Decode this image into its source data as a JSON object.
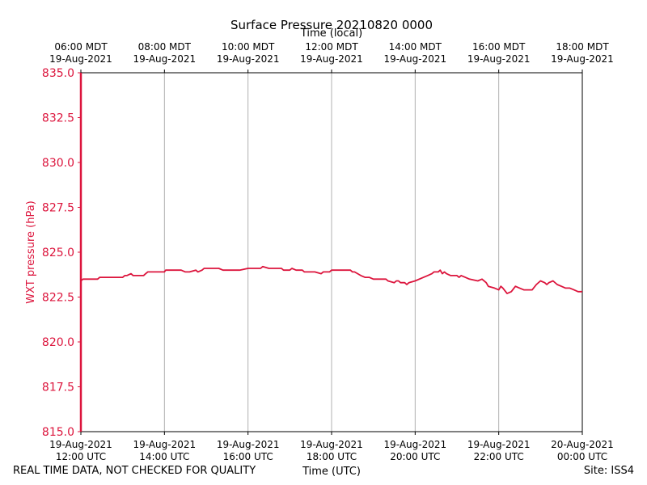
{
  "chart_data": {
    "type": "line",
    "title": "Surface Pressure 20210820 0000",
    "ylabel": "WXT pressure (hPa)",
    "xlabel_bottom": "Time (UTC)",
    "xlabel_top": "Time (local)",
    "ylim": [
      815.0,
      835.0
    ],
    "yticks": [
      "815.0",
      "817.5",
      "820.0",
      "822.5",
      "825.0",
      "827.5",
      "830.0",
      "832.5",
      "835.0"
    ],
    "xlim_hours": [
      0,
      12
    ],
    "grid": "vertical",
    "bottom_ticks": [
      {
        "hour": 0,
        "date": "19-Aug-2021",
        "time": "12:00 UTC"
      },
      {
        "hour": 2,
        "date": "19-Aug-2021",
        "time": "14:00 UTC"
      },
      {
        "hour": 4,
        "date": "19-Aug-2021",
        "time": "16:00 UTC"
      },
      {
        "hour": 6,
        "date": "19-Aug-2021",
        "time": "18:00 UTC"
      },
      {
        "hour": 8,
        "date": "19-Aug-2021",
        "time": "20:00 UTC"
      },
      {
        "hour": 10,
        "date": "19-Aug-2021",
        "time": "22:00 UTC"
      },
      {
        "hour": 12,
        "date": "20-Aug-2021",
        "time": "00:00 UTC"
      }
    ],
    "top_ticks": [
      {
        "hour": 0,
        "time": "06:00 MDT",
        "date": "19-Aug-2021"
      },
      {
        "hour": 2,
        "time": "08:00 MDT",
        "date": "19-Aug-2021"
      },
      {
        "hour": 4,
        "time": "10:00 MDT",
        "date": "19-Aug-2021"
      },
      {
        "hour": 6,
        "time": "12:00 MDT",
        "date": "19-Aug-2021"
      },
      {
        "hour": 8,
        "time": "14:00 MDT",
        "date": "19-Aug-2021"
      },
      {
        "hour": 10,
        "time": "16:00 MDT",
        "date": "19-Aug-2021"
      },
      {
        "hour": 12,
        "time": "18:00 MDT",
        "date": "19-Aug-2021"
      }
    ],
    "series": [
      {
        "name": "WXT pressure",
        "color": "#dc143c",
        "initial_spike": {
          "hour": 0.0,
          "from": 815.0,
          "to": 835.0
        },
        "x": [
          0.0,
          0.05,
          0.2,
          0.4,
          0.45,
          0.8,
          1.0,
          1.05,
          1.1,
          1.2,
          1.25,
          1.4,
          1.5,
          1.55,
          1.6,
          2.0,
          2.03,
          2.4,
          2.5,
          2.6,
          2.75,
          2.8,
          2.9,
          2.95,
          3.0,
          3.1,
          3.2,
          3.3,
          3.4,
          3.5,
          3.55,
          3.8,
          4.0,
          4.1,
          4.3,
          4.35,
          4.5,
          4.6,
          4.8,
          4.85,
          5.0,
          5.05,
          5.15,
          5.3,
          5.35,
          5.6,
          5.75,
          5.8,
          5.95,
          6.0,
          6.1,
          6.2,
          6.45,
          6.5,
          6.55,
          6.7,
          6.8,
          6.9,
          7.0,
          7.1,
          7.2,
          7.3,
          7.35,
          7.5,
          7.55,
          7.6,
          7.65,
          7.75,
          7.8,
          7.85,
          8.0,
          8.2,
          8.3,
          8.4,
          8.45,
          8.55,
          8.6,
          8.65,
          8.7,
          8.75,
          8.85,
          9.0,
          9.05,
          9.1,
          9.2,
          9.3,
          9.5,
          9.6,
          9.7,
          9.75,
          9.9,
          10.0,
          10.05,
          10.1,
          10.2,
          10.3,
          10.4,
          10.5,
          10.6,
          10.8,
          10.9,
          11.0,
          11.1,
          11.15,
          11.2,
          11.3,
          11.4,
          11.5,
          11.6,
          11.7,
          11.8,
          11.9,
          12.0
        ],
        "y": [
          823.4,
          823.5,
          823.5,
          823.5,
          823.6,
          823.6,
          823.6,
          823.7,
          823.7,
          823.8,
          823.7,
          823.7,
          823.7,
          823.8,
          823.9,
          823.9,
          824.0,
          824.0,
          823.9,
          823.9,
          824.0,
          823.9,
          824.0,
          824.1,
          824.1,
          824.1,
          824.1,
          824.1,
          824.0,
          824.0,
          824.0,
          824.0,
          824.1,
          824.1,
          824.1,
          824.2,
          824.1,
          824.1,
          824.1,
          824.0,
          824.0,
          824.1,
          824.0,
          824.0,
          823.9,
          823.9,
          823.8,
          823.9,
          823.9,
          824.0,
          824.0,
          824.0,
          824.0,
          823.9,
          823.9,
          823.7,
          823.6,
          823.6,
          823.5,
          823.5,
          823.5,
          823.5,
          823.4,
          823.3,
          823.4,
          823.4,
          823.3,
          823.3,
          823.2,
          823.3,
          823.4,
          823.6,
          823.7,
          823.8,
          823.9,
          823.9,
          824.0,
          823.8,
          823.9,
          823.8,
          823.7,
          823.7,
          823.6,
          823.7,
          823.6,
          823.5,
          823.4,
          823.5,
          823.3,
          823.1,
          823.0,
          822.9,
          823.1,
          823.0,
          822.7,
          822.8,
          823.1,
          823.0,
          822.9,
          822.9,
          823.2,
          823.4,
          823.3,
          823.2,
          823.3,
          823.4,
          823.2,
          823.1,
          823.0,
          823.0,
          822.9,
          822.8,
          822.8
        ]
      }
    ]
  },
  "footer": {
    "left": "REAL TIME DATA, NOT CHECKED FOR QUALITY",
    "right": "Site: ISS4"
  }
}
